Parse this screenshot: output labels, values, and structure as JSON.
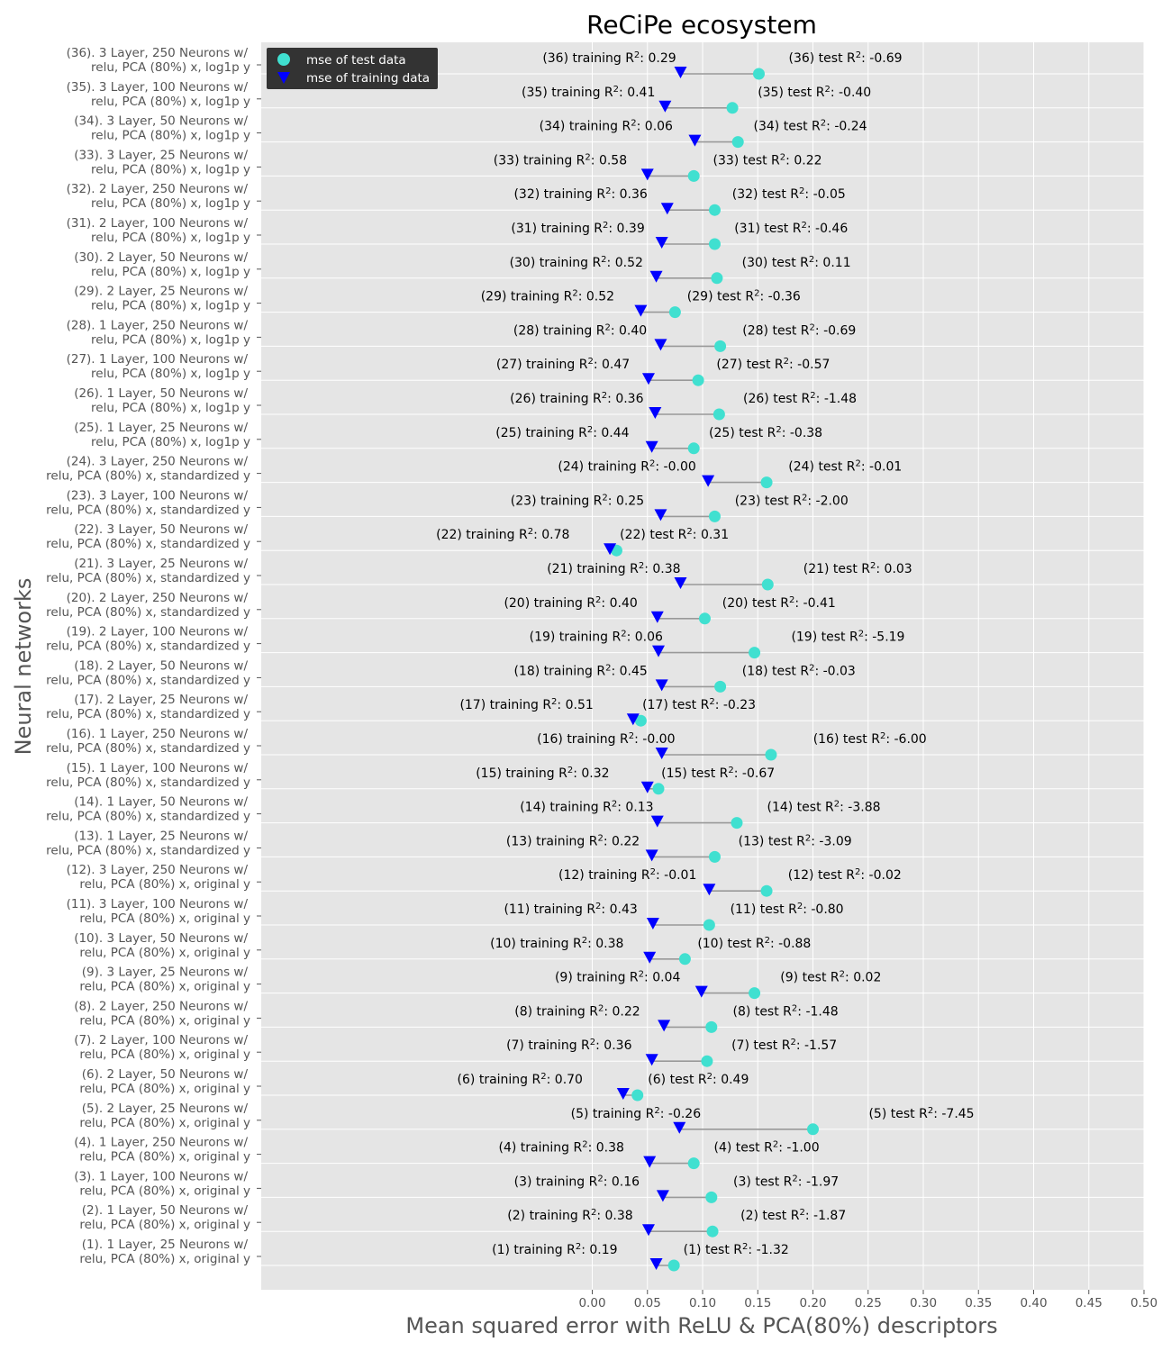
{
  "chart_data": {
    "type": "scatter",
    "title": "ReCiPe ecosystem",
    "xlabel": "Mean squared error with ReLU & PCA(80%) descriptors",
    "ylabel": "Neural networks",
    "xlim": [
      -0.3,
      0.5
    ],
    "xticks": [
      "0.00",
      "0.05",
      "0.10",
      "0.15",
      "0.20",
      "0.25",
      "0.30",
      "0.35",
      "0.40",
      "0.45",
      "0.50"
    ],
    "grid": true,
    "legend_position": "top-left",
    "series": [
      {
        "name": "mse of test data",
        "marker": "circle",
        "color": "#40e0d0"
      },
      {
        "name": "mse of training data",
        "marker": "triangle-down",
        "color": "#0000ff"
      }
    ],
    "connector_color": "#999999",
    "networks": [
      {
        "label_line1": "(1).   1 Layer, 25 Neurons w/",
        "label_line2": "relu, PCA (80%) x, original y",
        "test_mse": 0.074,
        "train_mse": 0.058,
        "train_label": "(1)   training R",
        "train_r2": ": 0.19",
        "test_label": "(1)   test R",
        "test_r2": ": -1.32"
      },
      {
        "label_line1": "(2).   1 Layer, 50 Neurons w/",
        "label_line2": "relu, PCA (80%) x, original y",
        "test_mse": 0.109,
        "train_mse": 0.051,
        "train_label": "(2)   training R",
        "train_r2": ": 0.38",
        "test_label": "(2)   test R",
        "test_r2": ": -1.87"
      },
      {
        "label_line1": "(3).   1 Layer, 100 Neurons w/",
        "label_line2": "relu, PCA (80%) x, original y",
        "test_mse": 0.108,
        "train_mse": 0.064,
        "train_label": "(3)   training R",
        "train_r2": ": 0.16",
        "test_label": "(3)   test R",
        "test_r2": ": -1.97"
      },
      {
        "label_line1": "(4).   1 Layer, 250 Neurons w/",
        "label_line2": "relu, PCA (80%) x, original y",
        "test_mse": 0.092,
        "train_mse": 0.052,
        "train_label": "(4)   training R",
        "train_r2": ": 0.38",
        "test_label": "(4)   test R",
        "test_r2": ": -1.00"
      },
      {
        "label_line1": "(5).   2 Layer, 25 Neurons w/",
        "label_line2": "relu, PCA (80%) x, original y",
        "test_mse": 0.2,
        "train_mse": 0.079,
        "train_label": "(5)   training R",
        "train_r2": ": -0.26",
        "test_label": "(5)   test R",
        "test_r2": ": -7.45"
      },
      {
        "label_line1": "(6).   2 Layer, 50 Neurons w/",
        "label_line2": "relu, PCA (80%) x, original y",
        "test_mse": 0.041,
        "train_mse": 0.028,
        "train_label": "(6)   training R",
        "train_r2": ": 0.70",
        "test_label": "(6)   test R",
        "test_r2": ": 0.49"
      },
      {
        "label_line1": "(7).   2 Layer, 100 Neurons w/",
        "label_line2": "relu, PCA (80%) x, original y",
        "test_mse": 0.104,
        "train_mse": 0.054,
        "train_label": "(7)   training R",
        "train_r2": ": 0.36",
        "test_label": "(7)   test R",
        "test_r2": ": -1.57"
      },
      {
        "label_line1": "(8).   2 Layer, 250 Neurons w/",
        "label_line2": "relu, PCA (80%) x, original y",
        "test_mse": 0.108,
        "train_mse": 0.065,
        "train_label": "(8)   training R",
        "train_r2": ": 0.22",
        "test_label": "(8)   test R",
        "test_r2": ": -1.48"
      },
      {
        "label_line1": "(9).   3 Layer, 25 Neurons w/",
        "label_line2": "relu, PCA (80%) x, original y",
        "test_mse": 0.147,
        "train_mse": 0.099,
        "train_label": "(9)   training R",
        "train_r2": ": 0.04",
        "test_label": "(9)   test R",
        "test_r2": ": 0.02"
      },
      {
        "label_line1": "(10).   3 Layer, 50 Neurons w/",
        "label_line2": "relu, PCA (80%) x, original y",
        "test_mse": 0.084,
        "train_mse": 0.052,
        "train_label": "(10)   training R",
        "train_r2": ": 0.38",
        "test_label": "(10)   test R",
        "test_r2": ": -0.88"
      },
      {
        "label_line1": "(11).   3 Layer, 100 Neurons w/",
        "label_line2": "relu, PCA (80%) x, original y",
        "test_mse": 0.106,
        "train_mse": 0.055,
        "train_label": "(11)   training R",
        "train_r2": ": 0.43",
        "test_label": "(11)   test R",
        "test_r2": ": -0.80"
      },
      {
        "label_line1": "(12).   3 Layer, 250 Neurons w/",
        "label_line2": "relu, PCA (80%) x, original y",
        "test_mse": 0.158,
        "train_mse": 0.106,
        "train_label": "(12)   training R",
        "train_r2": ": -0.01",
        "test_label": "(12)   test R",
        "test_r2": ": -0.02"
      },
      {
        "label_line1": "(13).   1 Layer, 25 Neurons w/",
        "label_line2": "relu, PCA (80%) x, standardized y",
        "test_mse": 0.111,
        "train_mse": 0.054,
        "train_label": "(13)   training R",
        "train_r2": ": 0.22",
        "test_label": "(13)   test R",
        "test_r2": ": -3.09"
      },
      {
        "label_line1": "(14).   1 Layer, 50 Neurons w/",
        "label_line2": "relu, PCA (80%) x, standardized y",
        "test_mse": 0.131,
        "train_mse": 0.059,
        "train_label": "(14)   training R",
        "train_r2": ": 0.13",
        "test_label": "(14)   test R",
        "test_r2": ": -3.88"
      },
      {
        "label_line1": "(15).   1 Layer, 100 Neurons w/",
        "label_line2": "relu, PCA (80%) x, standardized y",
        "test_mse": 0.06,
        "train_mse": 0.05,
        "train_label": "(15)   training R",
        "train_r2": ": 0.32",
        "test_label": "(15)   test R",
        "test_r2": ": -0.67"
      },
      {
        "label_line1": "(16).   1 Layer, 250 Neurons w/",
        "label_line2": "relu, PCA (80%) x, standardized y",
        "test_mse": 0.162,
        "train_mse": 0.063,
        "train_label": "(16)   training R",
        "train_r2": ": -0.00",
        "test_label": "(16)   test R",
        "test_r2": ": -6.00"
      },
      {
        "label_line1": "(17).   2 Layer, 25 Neurons w/",
        "label_line2": "relu, PCA (80%) x, standardized y",
        "test_mse": 0.044,
        "train_mse": 0.037,
        "train_label": "(17)   training R",
        "train_r2": ": 0.51",
        "test_label": "(17)   test R",
        "test_r2": ": -0.23"
      },
      {
        "label_line1": "(18).   2 Layer, 50 Neurons w/",
        "label_line2": "relu, PCA (80%) x, standardized y",
        "test_mse": 0.116,
        "train_mse": 0.063,
        "train_label": "(18)   training R",
        "train_r2": ": 0.45",
        "test_label": "(18)   test R",
        "test_r2": ": -0.03"
      },
      {
        "label_line1": "(19).   2 Layer, 100 Neurons w/",
        "label_line2": "relu, PCA (80%) x, standardized y",
        "test_mse": 0.147,
        "train_mse": 0.06,
        "train_label": "(19)   training R",
        "train_r2": ": 0.06",
        "test_label": "(19)   test R",
        "test_r2": ": -5.19"
      },
      {
        "label_line1": "(20).   2 Layer, 250 Neurons w/",
        "label_line2": "relu, PCA (80%) x, standardized y",
        "test_mse": 0.102,
        "train_mse": 0.059,
        "train_label": "(20)   training R",
        "train_r2": ": 0.40",
        "test_label": "(20)   test R",
        "test_r2": ": -0.41"
      },
      {
        "label_line1": "(21).   3 Layer, 25 Neurons w/",
        "label_line2": "relu, PCA (80%) x, standardized y",
        "test_mse": 0.159,
        "train_mse": 0.08,
        "train_label": "(21)   training R",
        "train_r2": ": 0.38",
        "test_label": "(21)   test R",
        "test_r2": ": 0.03"
      },
      {
        "label_line1": "(22).   3 Layer, 50 Neurons w/",
        "label_line2": "relu, PCA (80%) x, standardized y",
        "test_mse": 0.022,
        "train_mse": 0.016,
        "train_label": "(22)   training R",
        "train_r2": ": 0.78",
        "test_label": "(22)   test R",
        "test_r2": ": 0.31"
      },
      {
        "label_line1": "(23).   3 Layer, 100 Neurons w/",
        "label_line2": "relu, PCA (80%) x, standardized y",
        "test_mse": 0.111,
        "train_mse": 0.062,
        "train_label": "(23)   training R",
        "train_r2": ": 0.25",
        "test_label": "(23)   test R",
        "test_r2": ": -2.00"
      },
      {
        "label_line1": "(24).   3 Layer, 250 Neurons w/",
        "label_line2": "relu, PCA (80%) x, standardized y",
        "test_mse": 0.158,
        "train_mse": 0.105,
        "train_label": "(24)   training R",
        "train_r2": ": -0.00",
        "test_label": "(24)   test R",
        "test_r2": ": -0.01"
      },
      {
        "label_line1": "(25).   1 Layer, 25 Neurons w/",
        "label_line2": "relu, PCA (80%) x, log1p y",
        "test_mse": 0.092,
        "train_mse": 0.054,
        "train_label": "(25)   training R",
        "train_r2": ": 0.44",
        "test_label": "(25)   test R",
        "test_r2": ": -0.38"
      },
      {
        "label_line1": "(26).   1 Layer, 50 Neurons w/",
        "label_line2": "relu, PCA (80%) x, log1p y",
        "test_mse": 0.115,
        "train_mse": 0.057,
        "train_label": "(26)   training R",
        "train_r2": ": 0.36",
        "test_label": "(26)   test R",
        "test_r2": ": -1.48"
      },
      {
        "label_line1": "(27).   1 Layer, 100 Neurons w/",
        "label_line2": "relu, PCA (80%) x, log1p y",
        "test_mse": 0.096,
        "train_mse": 0.051,
        "train_label": "(27)   training R",
        "train_r2": ": 0.47",
        "test_label": "(27)   test R",
        "test_r2": ": -0.57"
      },
      {
        "label_line1": "(28).   1 Layer, 250 Neurons w/",
        "label_line2": "relu, PCA (80%) x, log1p y",
        "test_mse": 0.116,
        "train_mse": 0.062,
        "train_label": "(28)   training R",
        "train_r2": ": 0.40",
        "test_label": "(28)   test R",
        "test_r2": ": -0.69"
      },
      {
        "label_line1": "(29).   2 Layer, 25 Neurons w/",
        "label_line2": "relu, PCA (80%) x, log1p y",
        "test_mse": 0.075,
        "train_mse": 0.044,
        "train_label": "(29)   training R",
        "train_r2": ": 0.52",
        "test_label": "(29)   test R",
        "test_r2": ": -0.36"
      },
      {
        "label_line1": "(30).   2 Layer, 50 Neurons w/",
        "label_line2": "relu, PCA (80%) x, log1p y",
        "test_mse": 0.113,
        "train_mse": 0.058,
        "train_label": "(30)   training R",
        "train_r2": ": 0.52",
        "test_label": "(30)   test R",
        "test_r2": ": 0.11"
      },
      {
        "label_line1": "(31).   2 Layer, 100 Neurons w/",
        "label_line2": "relu, PCA (80%) x, log1p y",
        "test_mse": 0.111,
        "train_mse": 0.063,
        "train_label": "(31)   training R",
        "train_r2": ": 0.39",
        "test_label": "(31)   test R",
        "test_r2": ": -0.46"
      },
      {
        "label_line1": "(32).   2 Layer, 250 Neurons w/",
        "label_line2": "relu, PCA (80%) x, log1p y",
        "test_mse": 0.111,
        "train_mse": 0.068,
        "train_label": "(32)   training R",
        "train_r2": ": 0.36",
        "test_label": "(32)   test R",
        "test_r2": ": -0.05"
      },
      {
        "label_line1": "(33).   3 Layer, 25 Neurons w/",
        "label_line2": "relu, PCA (80%) x, log1p y",
        "test_mse": 0.092,
        "train_mse": 0.05,
        "train_label": "(33)   training R",
        "train_r2": ": 0.58",
        "test_label": "(33)   test R",
        "test_r2": ": 0.22"
      },
      {
        "label_line1": "(34).   3 Layer, 50 Neurons w/",
        "label_line2": "relu, PCA (80%) x, log1p y",
        "test_mse": 0.132,
        "train_mse": 0.093,
        "train_label": "(34)   training R",
        "train_r2": ": 0.06",
        "test_label": "(34)   test R",
        "test_r2": ": -0.24"
      },
      {
        "label_line1": "(35).   3 Layer, 100 Neurons w/",
        "label_line2": "relu, PCA (80%) x, log1p y",
        "test_mse": 0.127,
        "train_mse": 0.066,
        "train_label": "(35)   training R",
        "train_r2": ": 0.41",
        "test_label": "(35)   test R",
        "test_r2": ": -0.40"
      },
      {
        "label_line1": "(36).   3 Layer, 250 Neurons w/",
        "label_line2": "relu, PCA (80%) x, log1p y",
        "test_mse": 0.151,
        "train_mse": 0.08,
        "train_label": "(36)   training R",
        "train_r2": ": 0.29",
        "test_label": "(36)   test R",
        "test_r2": ": -0.69"
      }
    ]
  }
}
